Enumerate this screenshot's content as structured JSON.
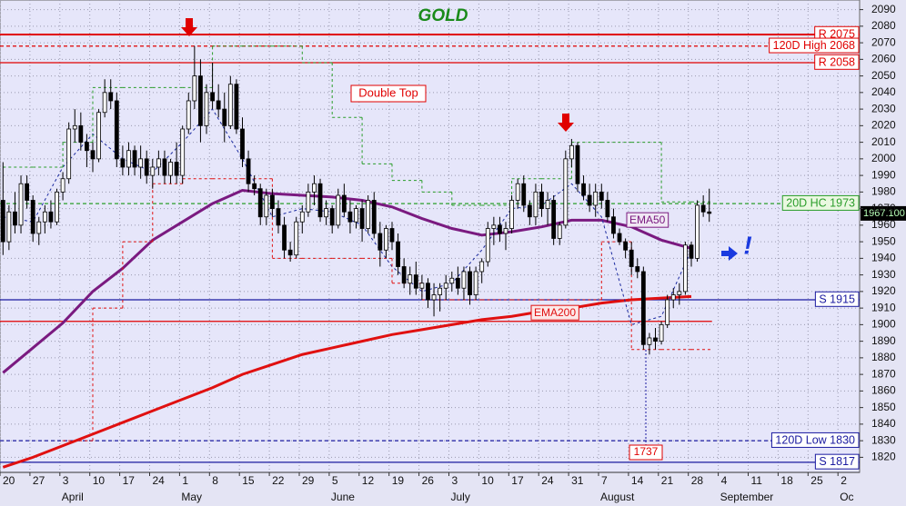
{
  "chart_data": {
    "type": "candlestick",
    "title": "GOLD",
    "weeks": [
      "20",
      "27",
      "3",
      "10",
      "17",
      "24",
      "1",
      "8",
      "15",
      "22",
      "29",
      "5",
      "12",
      "19",
      "26",
      "3",
      "10",
      "17",
      "24",
      "31",
      "7",
      "14",
      "21",
      "28",
      "4",
      "11",
      "18",
      "25",
      "2"
    ],
    "months": [
      null,
      null,
      "April",
      null,
      null,
      null,
      "May",
      null,
      null,
      null,
      null,
      "June",
      null,
      null,
      null,
      "July",
      null,
      null,
      null,
      null,
      "August",
      null,
      null,
      null,
      "September",
      null,
      null,
      null,
      "Oc"
    ],
    "candles": [
      [
        1975,
        1998,
        1942,
        1950
      ],
      [
        1950,
        1972,
        1945,
        1968
      ],
      [
        1968,
        1980,
        1955,
        1960
      ],
      [
        1960,
        1990,
        1955,
        1985
      ],
      [
        1985,
        1990,
        1970,
        1975
      ],
      [
        1975,
        1978,
        1950,
        1955
      ],
      [
        1955,
        1965,
        1948,
        1962
      ],
      [
        1962,
        1972,
        1955,
        1968
      ],
      [
        1968,
        1975,
        1958,
        1962
      ],
      [
        1962,
        1982,
        1960,
        1980
      ],
      [
        1980,
        1992,
        1975,
        1988
      ],
      [
        1988,
        2022,
        1985,
        2018
      ],
      [
        2018,
        2030,
        2010,
        2020
      ],
      [
        2020,
        2028,
        2005,
        2010
      ],
      [
        2010,
        2015,
        1995,
        2005
      ],
      [
        2005,
        2010,
        1992,
        2000
      ],
      [
        2000,
        2030,
        1998,
        2028
      ],
      [
        2028,
        2048,
        2025,
        2040
      ],
      [
        2040,
        2048,
        2030,
        2035
      ],
      [
        2035,
        2040,
        1995,
        2000
      ],
      [
        2000,
        2008,
        1990,
        1995
      ],
      [
        1995,
        2010,
        1990,
        2005
      ],
      [
        2005,
        2008,
        1990,
        1995
      ],
      [
        1995,
        2008,
        1988,
        2000
      ],
      [
        2000,
        2005,
        1985,
        1990
      ],
      [
        1990,
        2000,
        1982,
        1995
      ],
      [
        1995,
        2005,
        1990,
        2000
      ],
      [
        2000,
        2005,
        1985,
        1990
      ],
      [
        1990,
        2000,
        1985,
        1998
      ],
      [
        1998,
        2010,
        1985,
        1990
      ],
      [
        1990,
        2020,
        1985,
        2018
      ],
      [
        2018,
        2040,
        2015,
        2035
      ],
      [
        2035,
        2068,
        2030,
        2050
      ],
      [
        2050,
        2060,
        2010,
        2020
      ],
      [
        2020,
        2045,
        2015,
        2040
      ],
      [
        2040,
        2058,
        2030,
        2035
      ],
      [
        2035,
        2045,
        2025,
        2030
      ],
      [
        2030,
        2040,
        2010,
        2020
      ],
      [
        2020,
        2050,
        2018,
        2045
      ],
      [
        2045,
        2048,
        2015,
        2018
      ],
      [
        2018,
        2025,
        1995,
        2000
      ],
      [
        2000,
        2005,
        1980,
        1985
      ],
      [
        1985,
        1990,
        1978,
        1982
      ],
      [
        1982,
        1985,
        1960,
        1965
      ],
      [
        1965,
        1982,
        1960,
        1978
      ],
      [
        1978,
        1982,
        1965,
        1970
      ],
      [
        1970,
        1975,
        1955,
        1960
      ],
      [
        1960,
        1965,
        1940,
        1945
      ],
      [
        1945,
        1950,
        1938,
        1942
      ],
      [
        1942,
        1965,
        1940,
        1962
      ],
      [
        1962,
        1972,
        1955,
        1968
      ],
      [
        1968,
        1985,
        1965,
        1980
      ],
      [
        1980,
        1990,
        1972,
        1985
      ],
      [
        1985,
        1988,
        1962,
        1965
      ],
      [
        1965,
        1975,
        1960,
        1970
      ],
      [
        1970,
        1972,
        1955,
        1960
      ],
      [
        1960,
        1982,
        1958,
        1978
      ],
      [
        1978,
        1985,
        1965,
        1968
      ],
      [
        1968,
        1975,
        1955,
        1962
      ],
      [
        1962,
        1972,
        1958,
        1970
      ],
      [
        1970,
        1975,
        1950,
        1958
      ],
      [
        1958,
        1978,
        1955,
        1975
      ],
      [
        1975,
        1980,
        1952,
        1955
      ],
      [
        1955,
        1962,
        1935,
        1945
      ],
      [
        1945,
        1960,
        1940,
        1958
      ],
      [
        1958,
        1962,
        1945,
        1950
      ],
      [
        1950,
        1955,
        1930,
        1935
      ],
      [
        1935,
        1940,
        1922,
        1925
      ],
      [
        1925,
        1935,
        1918,
        1930
      ],
      [
        1930,
        1938,
        1918,
        1922
      ],
      [
        1922,
        1930,
        1915,
        1925
      ],
      [
        1925,
        1928,
        1910,
        1915
      ],
      [
        1915,
        1925,
        1905,
        1918
      ],
      [
        1918,
        1925,
        1908,
        1922
      ],
      [
        1922,
        1930,
        1915,
        1925
      ],
      [
        1925,
        1932,
        1920,
        1928
      ],
      [
        1928,
        1935,
        1918,
        1922
      ],
      [
        1922,
        1935,
        1915,
        1932
      ],
      [
        1932,
        1935,
        1912,
        1918
      ],
      [
        1918,
        1935,
        1915,
        1932
      ],
      [
        1932,
        1940,
        1925,
        1938
      ],
      [
        1938,
        1962,
        1935,
        1958
      ],
      [
        1958,
        1965,
        1948,
        1960
      ],
      [
        1960,
        1965,
        1950,
        1955
      ],
      [
        1955,
        1962,
        1945,
        1958
      ],
      [
        1958,
        1978,
        1955,
        1975
      ],
      [
        1975,
        1988,
        1970,
        1985
      ],
      [
        1985,
        1990,
        1968,
        1972
      ],
      [
        1972,
        1975,
        1960,
        1965
      ],
      [
        1965,
        1985,
        1960,
        1980
      ],
      [
        1980,
        1985,
        1965,
        1970
      ],
      [
        1970,
        1980,
        1960,
        1975
      ],
      [
        1975,
        1978,
        1948,
        1952
      ],
      [
        1952,
        1962,
        1948,
        1960
      ],
      [
        1960,
        2005,
        1958,
        2000
      ],
      [
        2000,
        2012,
        1995,
        2008
      ],
      [
        2008,
        2010,
        1980,
        1985
      ],
      [
        1985,
        1990,
        1975,
        1978
      ],
      [
        1978,
        1985,
        1968,
        1972
      ],
      [
        1972,
        1985,
        1965,
        1980
      ],
      [
        1980,
        1985,
        1970,
        1975
      ],
      [
        1975,
        1980,
        1962,
        1965
      ],
      [
        1965,
        1970,
        1952,
        1955
      ],
      [
        1955,
        1958,
        1948,
        1950
      ],
      [
        1950,
        1952,
        1940,
        1945
      ],
      [
        1945,
        1950,
        1930,
        1935
      ],
      [
        1935,
        1940,
        1928,
        1932
      ],
      [
        1932,
        1935,
        1885,
        1888
      ],
      [
        1888,
        1895,
        1882,
        1892
      ],
      [
        1892,
        1898,
        1885,
        1890
      ],
      [
        1890,
        1902,
        1888,
        1900
      ],
      [
        1900,
        1918,
        1898,
        1915
      ],
      [
        1915,
        1922,
        1910,
        1918
      ],
      [
        1918,
        1925,
        1912,
        1920
      ],
      [
        1920,
        1950,
        1918,
        1948
      ],
      [
        1948,
        1950,
        1935,
        1940
      ],
      [
        1940,
        1975,
        1938,
        1972
      ],
      [
        1972,
        1978,
        1965,
        1968
      ],
      [
        1968,
        1982,
        1962,
        1967.1
      ]
    ],
    "series": [
      {
        "name": "EMA50",
        "color": "#7a1a80",
        "style": "solid",
        "values": [
          1871,
          1886,
          1901,
          1920,
          1934,
          1951,
          1962,
          1973,
          1981,
          1979,
          1978,
          1977,
          1975,
          1971,
          1964,
          1958,
          1954,
          1956,
          1959,
          1963,
          1963,
          1959,
          1951,
          1946,
          null,
          null,
          null,
          null,
          null
        ]
      },
      {
        "name": "EMA200",
        "color": "#e01010",
        "style": "solid",
        "values": [
          1814,
          1820,
          1827,
          1834,
          1841,
          1848,
          1855,
          1862,
          1870,
          1876,
          1882,
          1886,
          1890,
          1894,
          1897,
          1900,
          1903,
          1905,
          1908,
          1910,
          1913,
          1915,
          1916,
          1917,
          null,
          null,
          null,
          null,
          null
        ]
      },
      {
        "color": "#1a2aa0",
        "style": "dashed",
        "values": [
          1965,
          1962,
          1995,
          2015,
          2000,
          1992,
          2010,
          2030,
          2000,
          1965,
          1970,
          1968,
          1960,
          1935,
          1920,
          1925,
          1945,
          1970,
          1972,
          1985,
          1965,
          1900,
          1905,
          1945,
          null,
          null,
          null,
          null,
          null
        ]
      },
      {
        "color": "#2a9d2a",
        "style": "step",
        "values": [
          1995,
          1995,
          2010,
          2043,
          2043,
          2043,
          2043,
          2068,
          2068,
          2068,
          2058,
          2025,
          1997,
          1987,
          1980,
          1972,
          1972,
          1988,
          1988,
          2010,
          2010,
          2010,
          1974,
          1974,
          null,
          null,
          null,
          null,
          null
        ]
      },
      {
        "color": "#e01010",
        "style": "step",
        "values": [
          null,
          null,
          1830,
          1910,
          1950,
          1985,
          1988,
          1988,
          1988,
          1940,
          1940,
          1940,
          1940,
          1925,
          1915,
          1915,
          1915,
          1915,
          1915,
          1915,
          1950,
          1885,
          1885,
          1885,
          null,
          null,
          null,
          null,
          null
        ]
      }
    ],
    "levels": [
      {
        "label": "R 2075",
        "value": 2075,
        "color": "#e00000",
        "style": "solid"
      },
      {
        "label": "120D High 2068",
        "value": 2068,
        "color": "#e00000",
        "style": "dashed"
      },
      {
        "label": "R 2058",
        "value": 2058,
        "color": "#e00000",
        "style": "solid"
      },
      {
        "label": "20D HC 1973",
        "value": 1973,
        "color": "#2a9d2a",
        "style": "dashed"
      },
      {
        "label": "S 1915",
        "value": 1915,
        "color": "#1a1aa0",
        "style": "solid"
      },
      {
        "label": "120D Low 1830",
        "value": 1830,
        "color": "#1a1aa0",
        "style": "dashed"
      },
      {
        "label": "S 1817",
        "value": 1817,
        "color": "#1a1aa0",
        "style": "solid"
      },
      {
        "value": 1902,
        "color": "#e00000",
        "style": "solid"
      }
    ],
    "last_price": {
      "value": 1967.1,
      "label": "1967.100"
    },
    "low_marker": 1737,
    "annotations": {
      "double_top": "Double Top",
      "signal": "!"
    },
    "ylim": [
      1810.9,
      2095.8
    ],
    "yticks": [
      1820,
      1830,
      1840,
      1850,
      1860,
      1870,
      1880,
      1890,
      1900,
      1910,
      1920,
      1930,
      1940,
      1950,
      1960,
      1970,
      1980,
      1990,
      2000,
      2010,
      2020,
      2030,
      2040,
      2050,
      2060,
      2070,
      2080,
      2090
    ],
    "grid": true
  }
}
